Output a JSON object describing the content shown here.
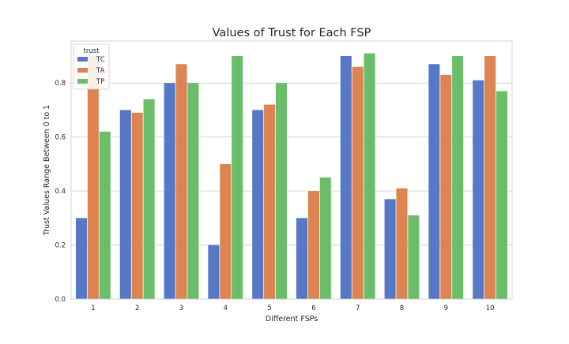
{
  "chart_data": {
    "type": "bar",
    "title": "Values of Trust for Each FSP",
    "xlabel": "Different FSPs",
    "ylabel": "Trust Values Range Between 0 to 1",
    "categories": [
      "1",
      "2",
      "3",
      "4",
      "5",
      "6",
      "7",
      "8",
      "9",
      "10"
    ],
    "series": [
      {
        "name": "TC",
        "color": "#5778c4",
        "values": [
          0.3,
          0.7,
          0.8,
          0.2,
          0.7,
          0.3,
          0.9,
          0.37,
          0.87,
          0.81
        ]
      },
      {
        "name": "TA",
        "color": "#dd8452",
        "values": [
          0.9,
          0.69,
          0.87,
          0.5,
          0.72,
          0.4,
          0.86,
          0.41,
          0.83,
          0.9
        ]
      },
      {
        "name": "TP",
        "color": "#6abe6a",
        "values": [
          0.62,
          0.74,
          0.8,
          0.9,
          0.8,
          0.45,
          0.91,
          0.31,
          0.9,
          0.77
        ]
      }
    ],
    "ylim": [
      0,
      0.9555
    ],
    "yticks": [
      "0.0",
      "0.2",
      "0.4",
      "0.6",
      "0.8"
    ],
    "grid": "horizontal",
    "legend": {
      "title": "trust",
      "placement": "top-left"
    }
  }
}
